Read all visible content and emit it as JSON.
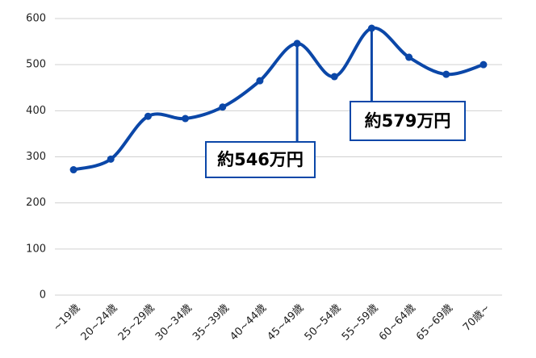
{
  "chart_data": {
    "type": "line",
    "categories": [
      "~19歳",
      "20~24歳",
      "25~29歳",
      "30~34歳",
      "35~39歳",
      "40~44歳",
      "45~49歳",
      "50~54歳",
      "55~59歳",
      "60~64歳",
      "65~69歳",
      "70歳~"
    ],
    "values": [
      272,
      295,
      388,
      383,
      408,
      465,
      546,
      474,
      579,
      516,
      479,
      500
    ],
    "color": "#0b47a8",
    "ylim": [
      0,
      600
    ],
    "yticks": [
      0,
      100,
      200,
      300,
      400,
      500,
      600
    ],
    "grid": true,
    "annotations": [
      "約546万円",
      "約579万円"
    ]
  }
}
